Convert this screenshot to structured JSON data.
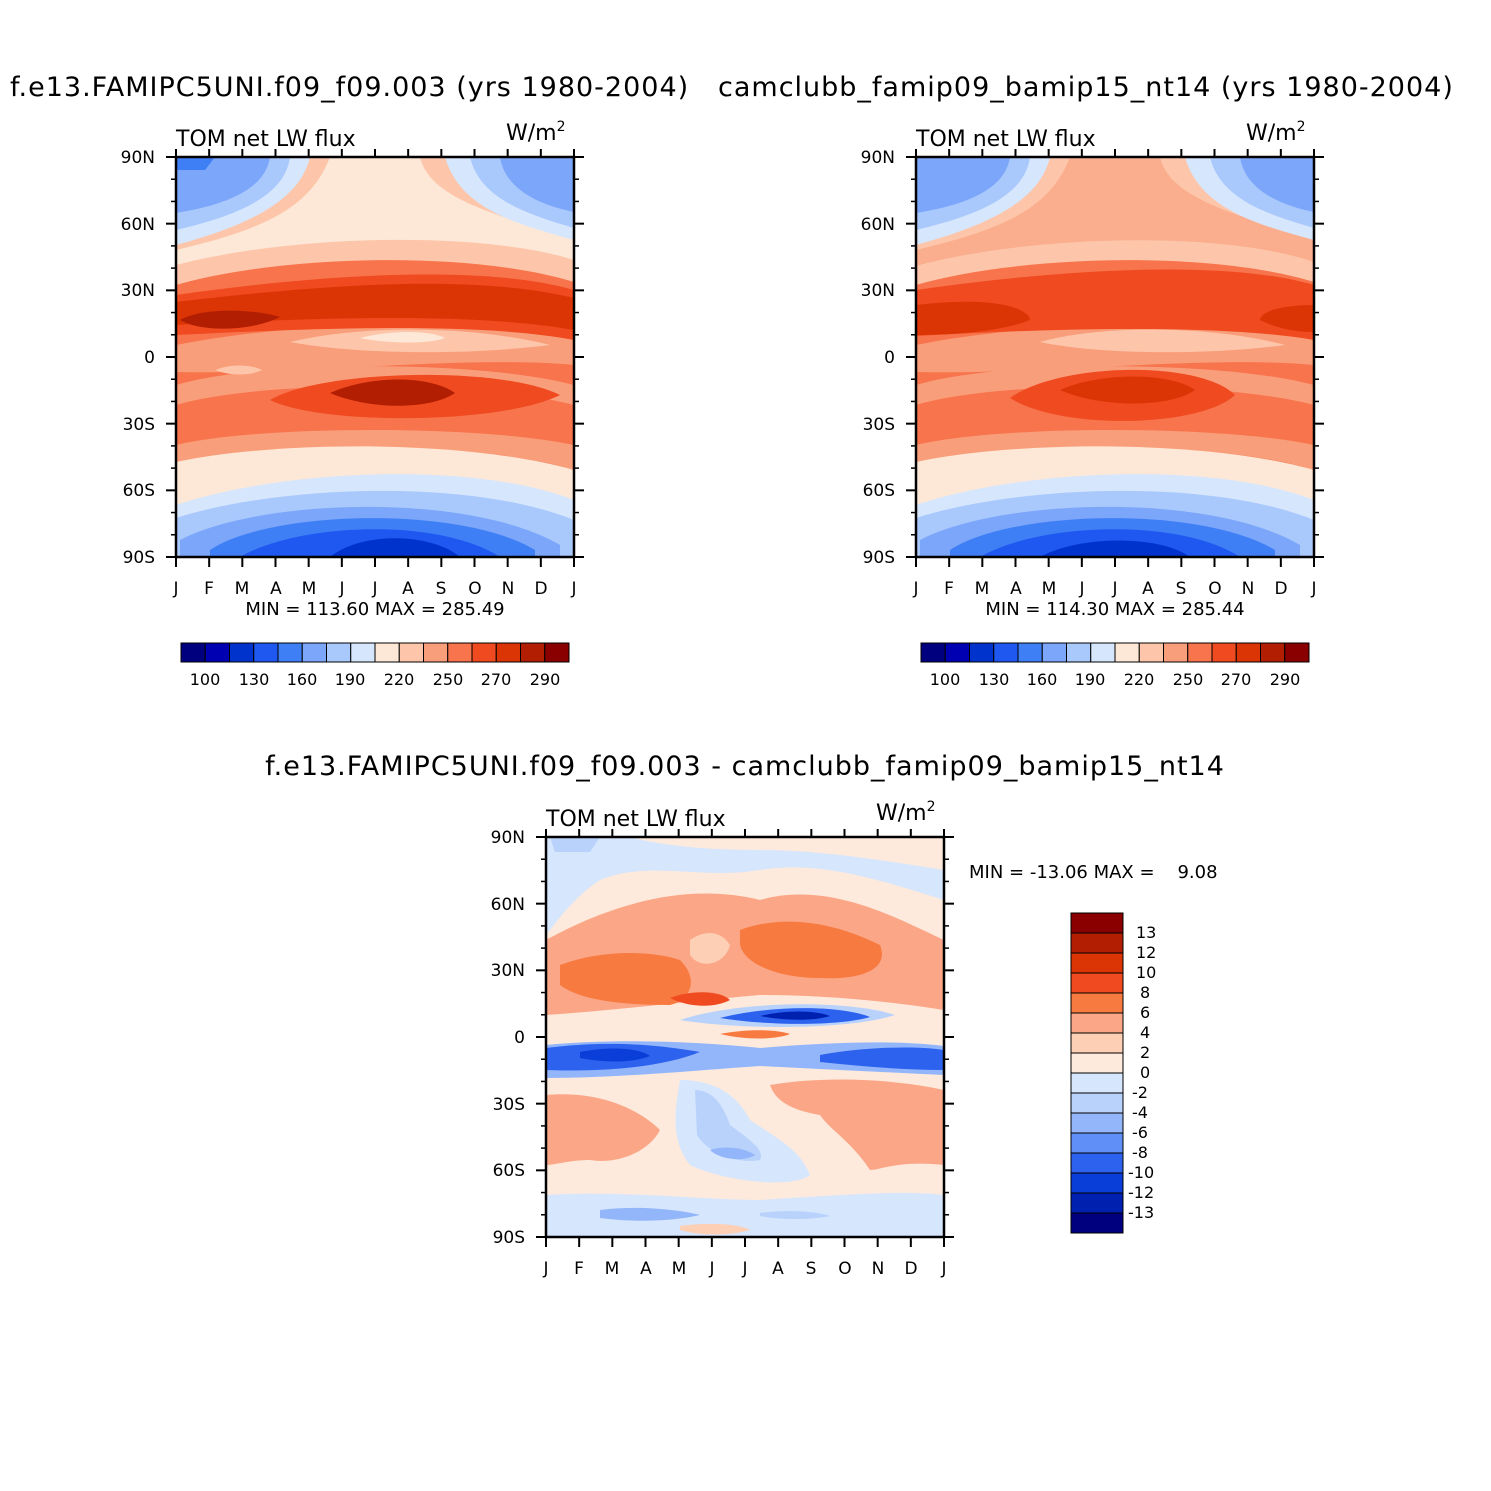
{
  "chart_data": [
    {
      "type": "heatmap",
      "title": "f.e13.FAMIPC5UNI.f09_f09.003 (yrs 1980-2004)",
      "subtitle_left": "TOM net LW flux",
      "units_base": "W/m",
      "units_exp": "2",
      "x_tick_labels": [
        "J",
        "F",
        "M",
        "A",
        "M",
        "J",
        "J",
        "A",
        "S",
        "O",
        "N",
        "D",
        "J"
      ],
      "y_tick_labels": [
        "90N",
        "60N",
        "30N",
        "0",
        "30S",
        "60S",
        "90S"
      ],
      "y_values": [
        90,
        60,
        30,
        0,
        -30,
        -60,
        -90
      ],
      "stats_text": "MIN = 113.60 MAX = 285.49",
      "min": 113.6,
      "max": 285.49,
      "colorbar_labels": [
        "100",
        "130",
        "160",
        "190",
        "220",
        "250",
        "270",
        "290"
      ],
      "colorbar_colors": [
        "#00007f",
        "#0000b3",
        "#0033cc",
        "#1e58f0",
        "#3f7ff5",
        "#7ba6fa",
        "#a9c8fc",
        "#d6e6fd",
        "#fde8d7",
        "#fdc6aa",
        "#f99e7a",
        "#f7744d",
        "#f04a20",
        "#dc3505",
        "#b21e02",
        "#8a0000"
      ]
    },
    {
      "type": "heatmap",
      "title": "camclubb_famip09_bamip15_nt14 (yrs 1980-2004)",
      "subtitle_left": "TOM net LW flux",
      "units_base": "W/m",
      "units_exp": "2",
      "x_tick_labels": [
        "J",
        "F",
        "M",
        "A",
        "M",
        "J",
        "J",
        "A",
        "S",
        "O",
        "N",
        "D",
        "J"
      ],
      "y_tick_labels": [
        "90N",
        "60N",
        "30N",
        "0",
        "30S",
        "60S",
        "90S"
      ],
      "y_values": [
        90,
        60,
        30,
        0,
        -30,
        -60,
        -90
      ],
      "stats_text": "MIN = 114.30 MAX = 285.44",
      "min": 114.3,
      "max": 285.44,
      "colorbar_labels": [
        "100",
        "130",
        "160",
        "190",
        "220",
        "250",
        "270",
        "290"
      ],
      "colorbar_colors": [
        "#00007f",
        "#0000b3",
        "#0033cc",
        "#1e58f0",
        "#3f7ff5",
        "#7ba6fa",
        "#a9c8fc",
        "#d6e6fd",
        "#fde8d7",
        "#fdc6aa",
        "#f99e7a",
        "#f7744d",
        "#f04a20",
        "#dc3505",
        "#b21e02",
        "#8a0000"
      ]
    },
    {
      "type": "heatmap",
      "title": "f.e13.FAMIPC5UNI.f09_f09.003 - camclubb_famip09_bamip15_nt14",
      "subtitle_left": "TOM net LW flux",
      "units_base": "W/m",
      "units_exp": "2",
      "x_tick_labels": [
        "J",
        "F",
        "M",
        "A",
        "M",
        "J",
        "J",
        "A",
        "S",
        "O",
        "N",
        "D",
        "J"
      ],
      "y_tick_labels": [
        "90N",
        "60N",
        "30N",
        "0",
        "30S",
        "60S",
        "90S"
      ],
      "y_values": [
        90,
        60,
        30,
        0,
        -30,
        -60,
        -90
      ],
      "stats_text": "MIN = -13.06 MAX =    9.08",
      "min": -13.06,
      "max": 9.08,
      "colorbar_labels": [
        "13",
        "12",
        "10",
        "8",
        "6",
        "4",
        "2",
        "0",
        "-2",
        "-4",
        "-6",
        "-8",
        "-10",
        "-12",
        "-13"
      ],
      "colorbar_colors": [
        "#8a0000",
        "#b21e02",
        "#dc3505",
        "#f04a20",
        "#f77a40",
        "#fba787",
        "#fdcfb5",
        "#fdeadc",
        "#d6e6fd",
        "#b8d2fc",
        "#93b6fb",
        "#5f8ff7",
        "#2d62ef",
        "#0a3ed8",
        "#0020b0",
        "#00007f"
      ]
    }
  ]
}
